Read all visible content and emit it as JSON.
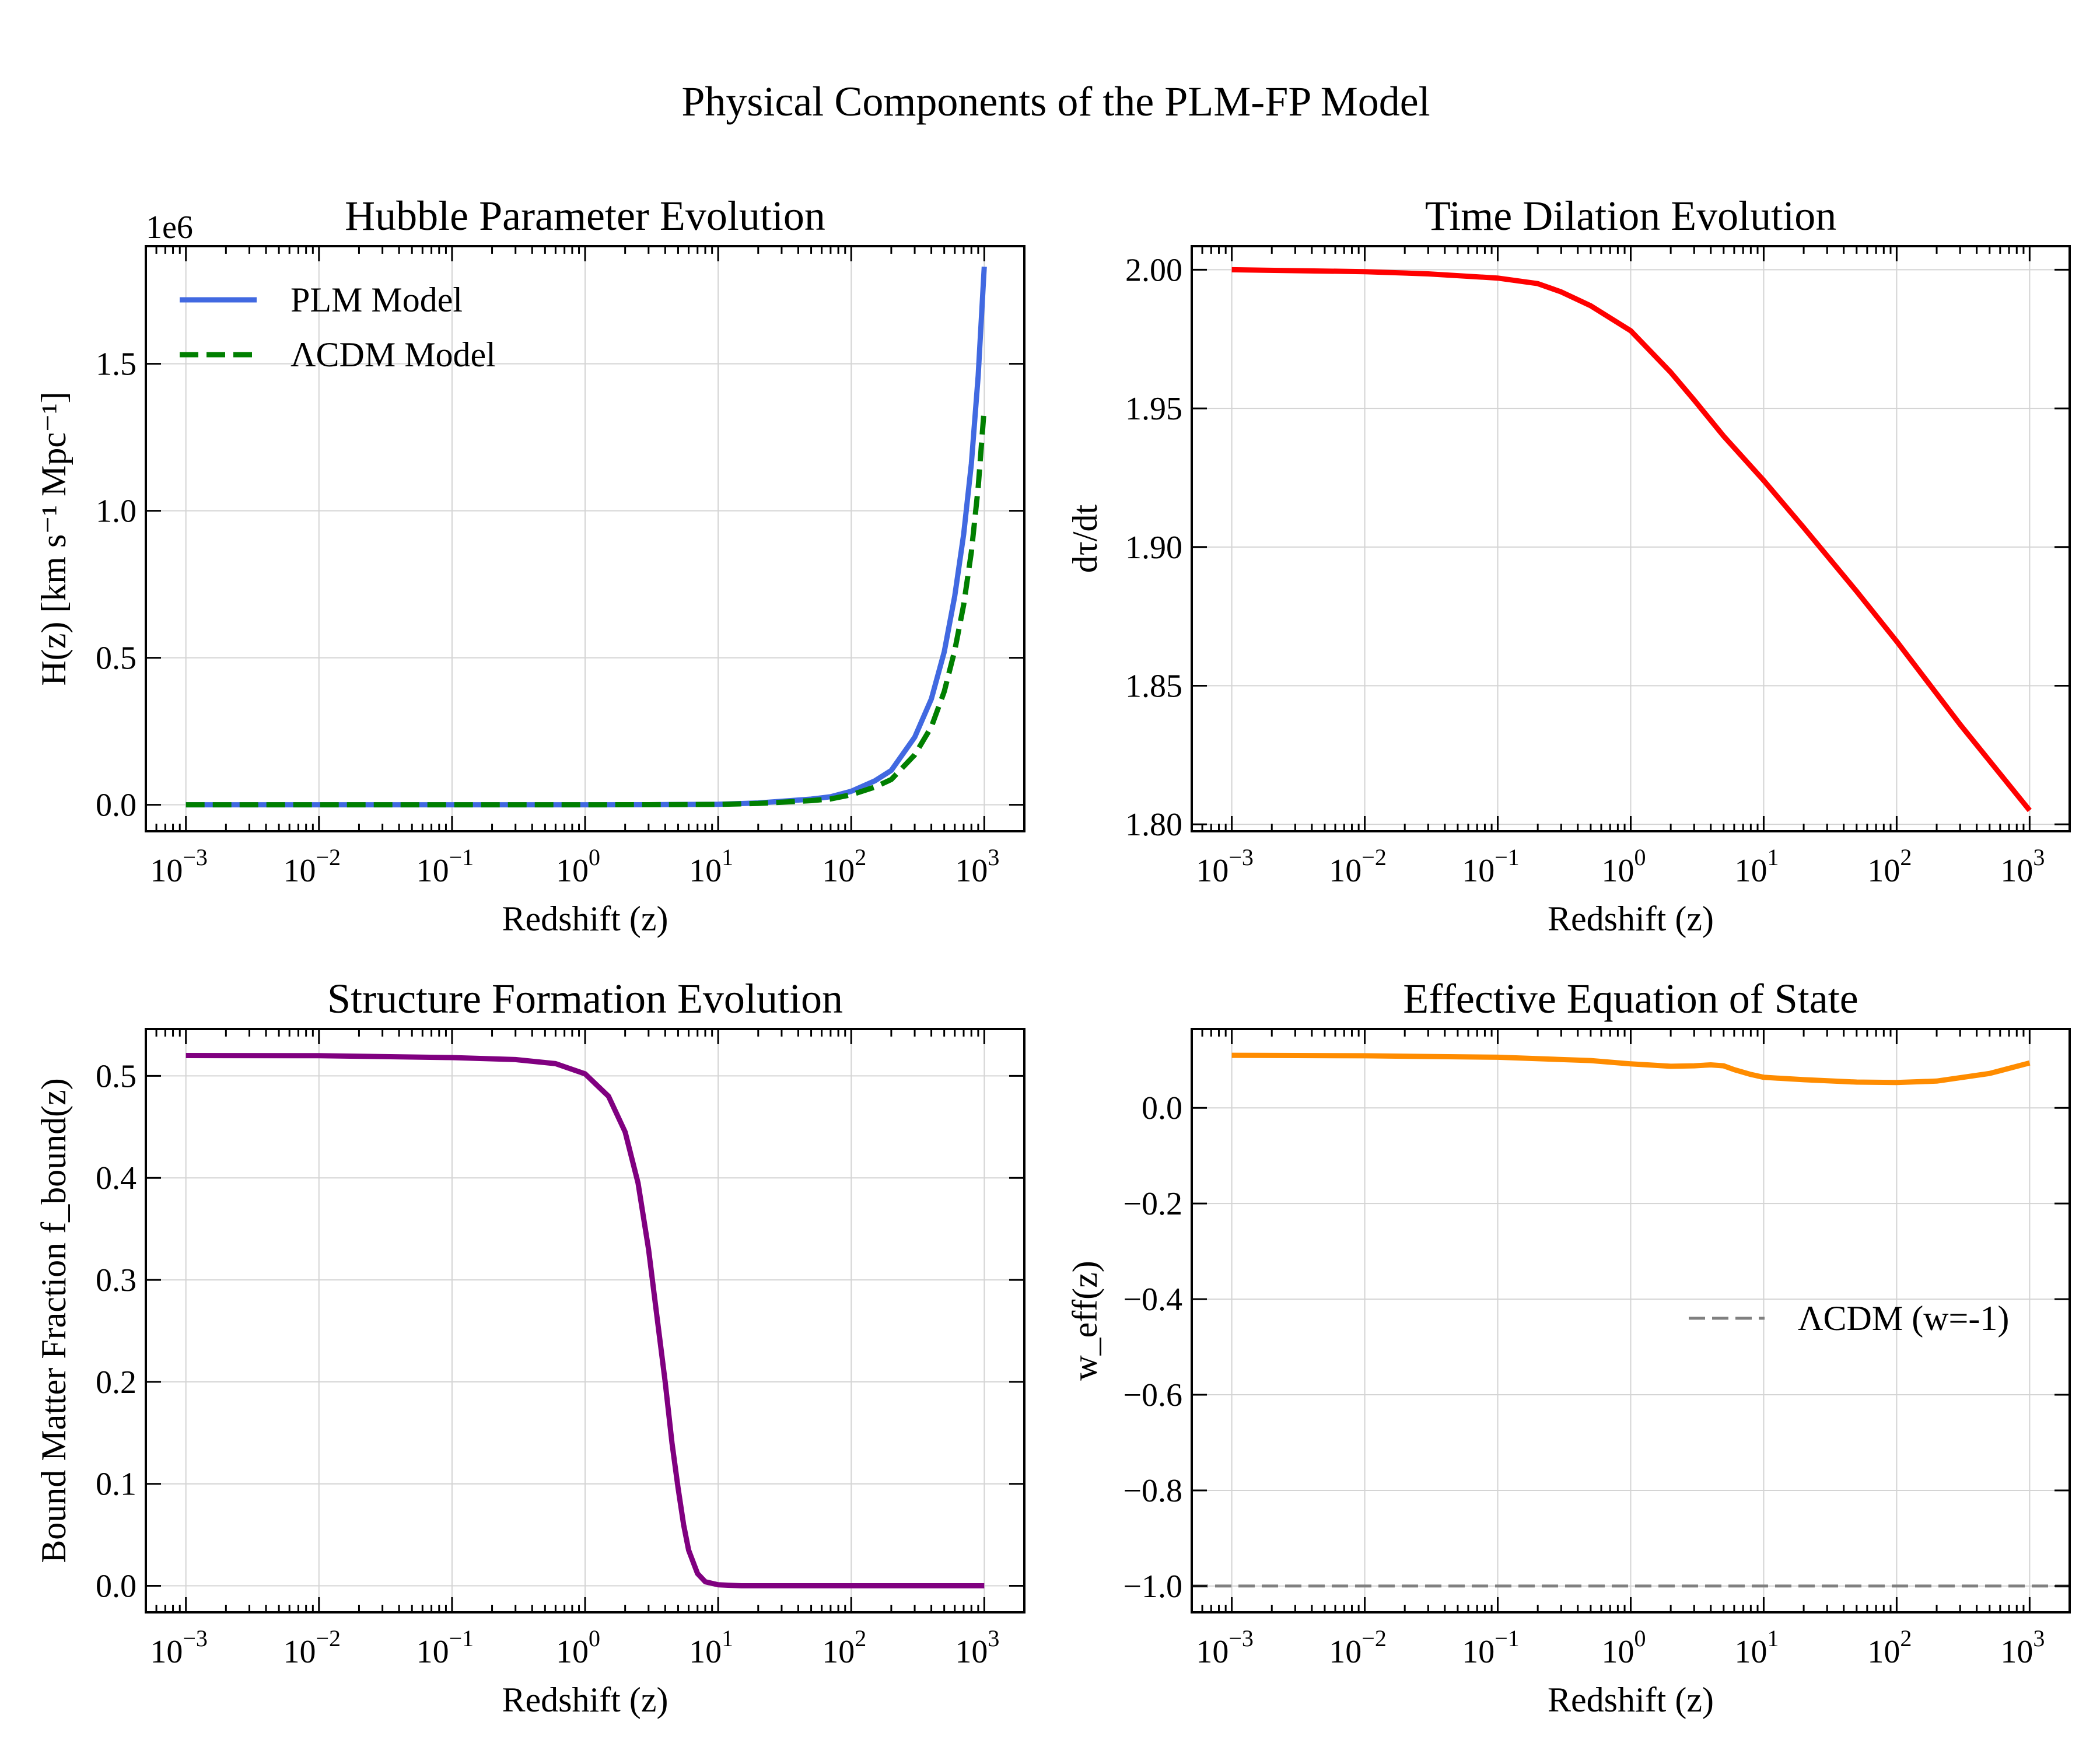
{
  "figure": {
    "title": "Physical Components of the PLM-FP Model"
  },
  "colors": {
    "plm": "#4169E1",
    "lcdm": "#007F00",
    "dilation": "#FF0000",
    "fbound": "#800080",
    "weff": "#FF8C00",
    "lcdm_w": "#808080",
    "grid": "#d4d4d4"
  },
  "chart_data": [
    {
      "id": "hubble",
      "type": "line",
      "title": "Hubble Parameter Evolution",
      "xlabel": "Redshift (z)",
      "ylabel": "H(z) [km s⁻¹ Mpc⁻¹]",
      "offset_text": "1e6",
      "xscale": "log",
      "xlim": [
        0.0005,
        2000
      ],
      "ylim": [
        -0.09,
        1.9
      ],
      "ytick_values": [
        0.0,
        0.5,
        1.0,
        1.5
      ],
      "ytick_labels": [
        "0.0",
        "0.5",
        "1.0",
        "1.5"
      ],
      "grid": true,
      "legend_position": "upper-left",
      "series": [
        {
          "name": "PLM Model",
          "style": "solid",
          "x": [
            0.001,
            0.01,
            0.1,
            1,
            3,
            10,
            20,
            30,
            50,
            70,
            100,
            150,
            200,
            300,
            400,
            500,
            600,
            700,
            800,
            900,
            1000
          ],
          "y": [
            0.0,
            0.0,
            0.0,
            0.0001,
            0.0003,
            0.0018,
            0.0063,
            0.0119,
            0.0193,
            0.0274,
            0.046,
            0.081,
            0.117,
            0.23,
            0.36,
            0.52,
            0.71,
            0.92,
            1.16,
            1.46,
            1.83
          ]
        },
        {
          "name": "ΛCDM Model",
          "style": "dashed",
          "x": [
            0.001,
            0.01,
            0.1,
            1,
            3,
            10,
            20,
            30,
            50,
            70,
            100,
            150,
            200,
            300,
            400,
            500,
            600,
            700,
            800,
            900,
            1000
          ],
          "y": [
            0.0,
            0.0,
            0.0,
            0.0001,
            0.0002,
            0.0013,
            0.0046,
            0.0087,
            0.0141,
            0.02,
            0.034,
            0.06,
            0.086,
            0.17,
            0.265,
            0.385,
            0.525,
            0.68,
            0.86,
            1.08,
            1.35
          ]
        }
      ]
    },
    {
      "id": "dilation",
      "type": "line",
      "title": "Time Dilation Evolution",
      "xlabel": "Redshift (z)",
      "ylabel": "dτ/dt",
      "xscale": "log",
      "xlim": [
        0.0005,
        2000
      ],
      "ylim": [
        1.7975,
        2.0085
      ],
      "ytick_values": [
        1.8,
        1.85,
        1.9,
        1.95,
        2.0
      ],
      "ytick_labels": [
        "1.80",
        "1.85",
        "1.90",
        "1.95",
        "2.00"
      ],
      "grid": true,
      "series": [
        {
          "name": "",
          "style": "solid",
          "x": [
            0.001,
            0.01,
            0.03,
            0.1,
            0.2,
            0.3,
            0.5,
            1,
            2,
            3,
            5,
            10,
            20,
            50,
            100,
            300,
            1000
          ],
          "y": [
            2.0,
            1.9993,
            1.9985,
            1.997,
            1.995,
            1.992,
            1.987,
            1.978,
            1.963,
            1.953,
            1.94,
            1.924,
            1.907,
            1.884,
            1.866,
            1.836,
            1.805
          ]
        }
      ]
    },
    {
      "id": "structure",
      "type": "line",
      "title": "Structure Formation Evolution",
      "xlabel": "Redshift (z)",
      "ylabel": "Bound Matter Fraction f_bound(z)",
      "xscale": "log",
      "xlim": [
        0.0005,
        2000
      ],
      "ylim": [
        -0.026,
        0.546
      ],
      "ytick_values": [
        0.0,
        0.1,
        0.2,
        0.3,
        0.4,
        0.5
      ],
      "ytick_labels": [
        "0.0",
        "0.1",
        "0.2",
        "0.3",
        "0.4",
        "0.5"
      ],
      "grid": true,
      "series": [
        {
          "name": "",
          "style": "solid",
          "x": [
            0.001,
            0.01,
            0.1,
            0.3,
            0.6,
            1,
            1.5,
            2,
            2.5,
            3,
            3.5,
            4,
            4.5,
            5,
            5.5,
            6,
            7,
            8,
            10,
            15,
            100,
            1000
          ],
          "y": [
            0.52,
            0.5198,
            0.518,
            0.516,
            0.512,
            0.502,
            0.48,
            0.445,
            0.395,
            0.33,
            0.26,
            0.2,
            0.14,
            0.096,
            0.06,
            0.035,
            0.012,
            0.004,
            0.001,
            0.0,
            0.0,
            0.0
          ]
        }
      ]
    },
    {
      "id": "eos",
      "type": "line",
      "title": "Effective Equation of State",
      "xlabel": "Redshift (z)",
      "ylabel": "w_eff(z)",
      "xscale": "log",
      "xlim": [
        0.0005,
        2000
      ],
      "ylim": [
        -1.055,
        0.165
      ],
      "ytick_values": [
        -1.0,
        -0.8,
        -0.6,
        -0.4,
        -0.2,
        0.0
      ],
      "ytick_labels": [
        "−1.0",
        "−0.8",
        "−0.6",
        "−0.4",
        "−0.2",
        "0.0"
      ],
      "grid": true,
      "legend_position": "center-right",
      "series": [
        {
          "name": "",
          "style": "solid",
          "x": [
            0.001,
            0.01,
            0.1,
            0.5,
            1,
            2,
            3,
            4,
            5,
            6,
            8,
            10,
            20,
            50,
            100,
            200,
            500,
            1000
          ],
          "y": [
            0.11,
            0.109,
            0.106,
            0.099,
            0.092,
            0.087,
            0.088,
            0.09,
            0.088,
            0.08,
            0.07,
            0.064,
            0.059,
            0.054,
            0.053,
            0.056,
            0.072,
            0.094
          ]
        },
        {
          "name": "ΛCDM (w=-1)",
          "style": "dashed",
          "x": [
            0.0005,
            2000
          ],
          "y": [
            -1.0,
            -1.0
          ]
        }
      ]
    }
  ]
}
